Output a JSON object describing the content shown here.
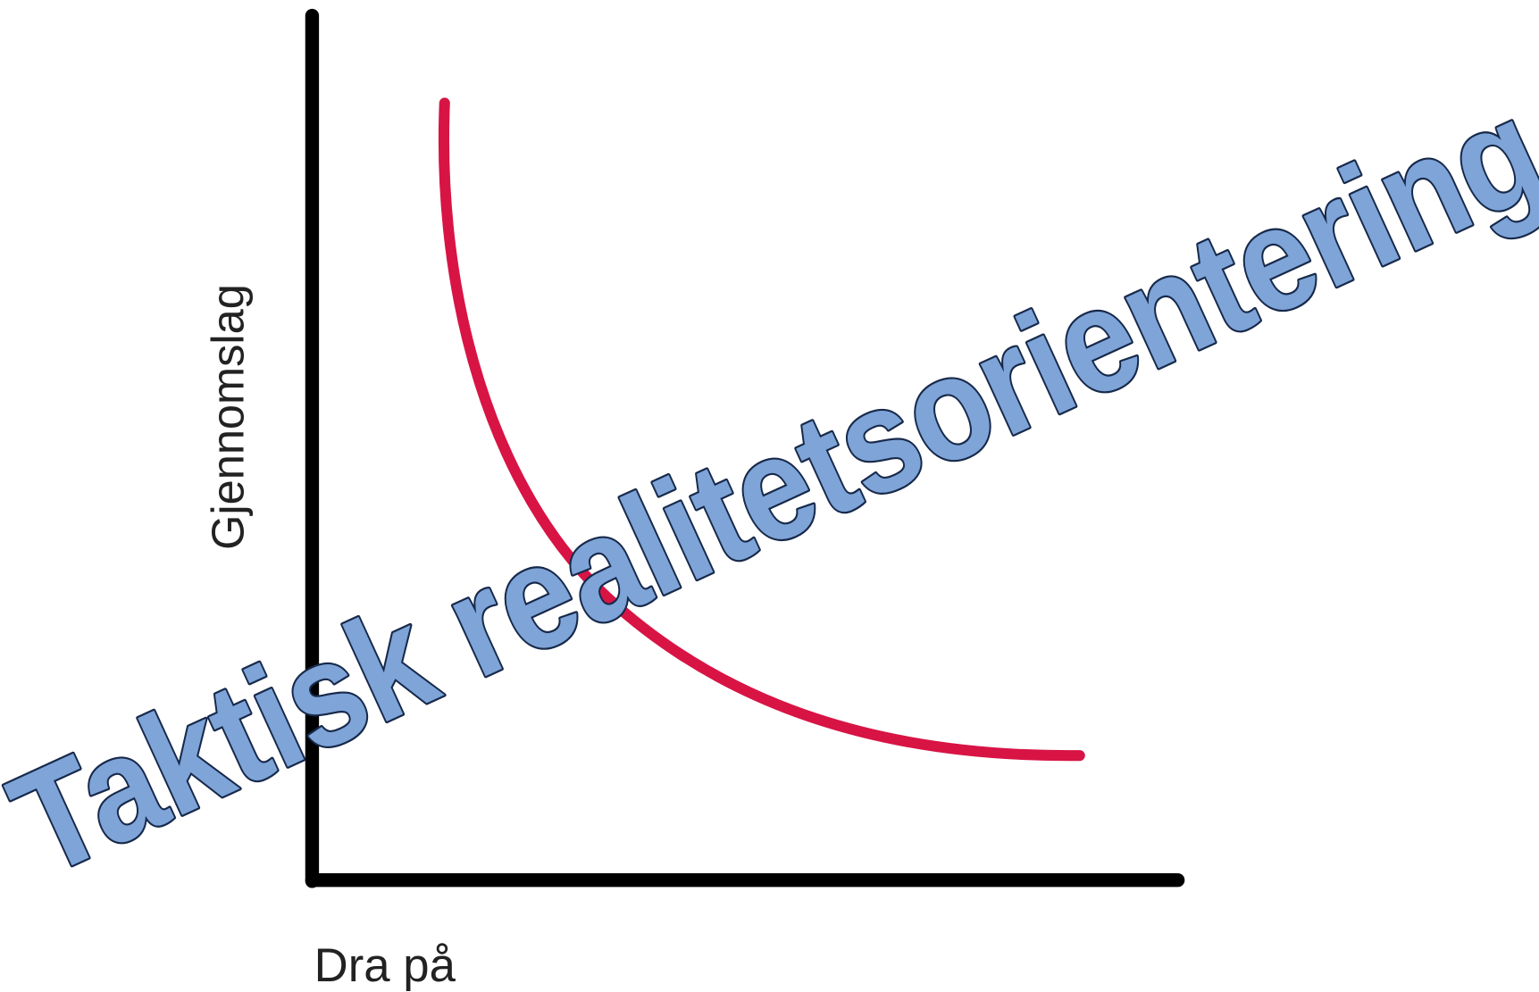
{
  "y_axis_label": "Gjennomslag",
  "x_axis_label": "Dra på",
  "overlay_text": "Taktisk realitetsorientering"
}
